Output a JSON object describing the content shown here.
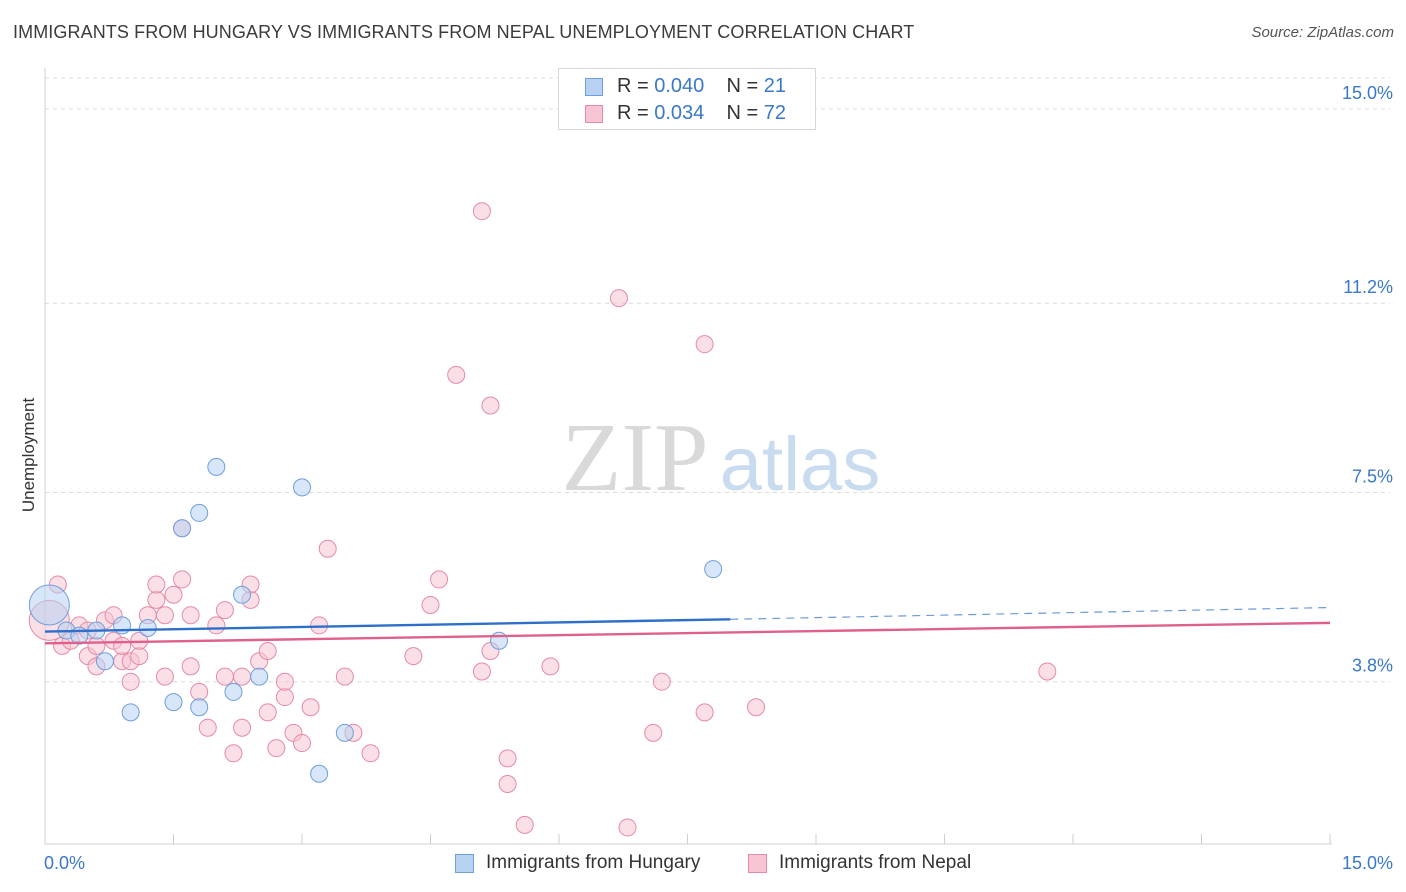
{
  "title": "IMMIGRANTS FROM HUNGARY VS IMMIGRANTS FROM NEPAL UNEMPLOYMENT CORRELATION CHART",
  "source": "Source: ZipAtlas.com",
  "watermark": {
    "zip": "ZIP",
    "atlas": "atlas"
  },
  "legend_top": {
    "hungary": {
      "r_label": "R =",
      "r_value": "0.040",
      "n_label": "N =",
      "n_value": "21"
    },
    "nepal": {
      "r_label": "R =",
      "r_value": "0.034",
      "n_label": "N =",
      "n_value": "72"
    }
  },
  "chart_data": {
    "type": "scatter",
    "title": "IMMIGRANTS FROM HUNGARY VS IMMIGRANTS FROM NEPAL UNEMPLOYMENT CORRELATION CHART",
    "xlabel": "",
    "ylabel": "Unemployment",
    "xlim": [
      0,
      15
    ],
    "ylim": [
      0.9,
      15.8
    ],
    "x_tick_labels": [
      "0.0%",
      "15.0%"
    ],
    "y_ticks": [
      3.8,
      7.5,
      11.2,
      15.0
    ],
    "y_tick_labels": [
      "3.8%",
      "7.5%",
      "11.2%",
      "15.0%"
    ],
    "grid": true,
    "colors": {
      "hungary_fill": "#b7d1f3",
      "hungary_stroke": "#6f9fdc",
      "hungary_line": "#2e6fca",
      "nepal_fill": "#f7c5d4",
      "nepal_stroke": "#e58aa8",
      "nepal_line": "#e0608c",
      "tick_label": "#3a78c9"
    },
    "series": [
      {
        "name": "Immigrants from Hungary",
        "trend": {
          "x0": 0,
          "y0": 4.78,
          "x1": 8.0,
          "y1": 5.02,
          "dash_to_x": 15,
          "dash_to_y": 5.25
        },
        "points": [
          {
            "x": 0.05,
            "y": 5.3,
            "s": "L"
          },
          {
            "x": 0.25,
            "y": 4.8
          },
          {
            "x": 0.6,
            "y": 4.8
          },
          {
            "x": 0.9,
            "y": 4.9
          },
          {
            "x": 1.2,
            "y": 4.85
          },
          {
            "x": 0.7,
            "y": 4.2
          },
          {
            "x": 1.0,
            "y": 3.2
          },
          {
            "x": 1.6,
            "y": 6.8
          },
          {
            "x": 1.8,
            "y": 7.1
          },
          {
            "x": 2.0,
            "y": 8.0
          },
          {
            "x": 1.5,
            "y": 3.4
          },
          {
            "x": 1.8,
            "y": 3.3
          },
          {
            "x": 2.2,
            "y": 3.6
          },
          {
            "x": 2.3,
            "y": 5.5
          },
          {
            "x": 2.5,
            "y": 3.9
          },
          {
            "x": 3.0,
            "y": 7.6
          },
          {
            "x": 3.5,
            "y": 2.8
          },
          {
            "x": 3.2,
            "y": 2.0
          },
          {
            "x": 5.3,
            "y": 4.6
          },
          {
            "x": 7.8,
            "y": 6.0
          },
          {
            "x": 0.4,
            "y": 4.7
          }
        ]
      },
      {
        "name": "Immigrants from Nepal",
        "trend": {
          "x0": 0,
          "y0": 4.55,
          "x1": 15,
          "y1": 4.95
        },
        "points": [
          {
            "x": 0.05,
            "y": 5.0,
            "s": "L"
          },
          {
            "x": 0.15,
            "y": 5.7
          },
          {
            "x": 0.2,
            "y": 4.5
          },
          {
            "x": 0.3,
            "y": 4.6
          },
          {
            "x": 0.4,
            "y": 4.9
          },
          {
            "x": 0.5,
            "y": 4.3
          },
          {
            "x": 0.6,
            "y": 4.1
          },
          {
            "x": 0.6,
            "y": 4.5
          },
          {
            "x": 0.7,
            "y": 5.0
          },
          {
            "x": 0.8,
            "y": 4.6
          },
          {
            "x": 0.8,
            "y": 5.1
          },
          {
            "x": 0.9,
            "y": 4.2
          },
          {
            "x": 0.9,
            "y": 4.5
          },
          {
            "x": 1.0,
            "y": 3.8
          },
          {
            "x": 1.0,
            "y": 4.2
          },
          {
            "x": 1.1,
            "y": 4.3
          },
          {
            "x": 1.1,
            "y": 4.6
          },
          {
            "x": 1.2,
            "y": 5.1
          },
          {
            "x": 1.3,
            "y": 5.4
          },
          {
            "x": 1.3,
            "y": 5.7
          },
          {
            "x": 1.4,
            "y": 3.9
          },
          {
            "x": 1.4,
            "y": 5.1
          },
          {
            "x": 1.5,
            "y": 5.5
          },
          {
            "x": 1.6,
            "y": 6.8
          },
          {
            "x": 1.6,
            "y": 5.8
          },
          {
            "x": 1.7,
            "y": 5.1
          },
          {
            "x": 1.7,
            "y": 4.1
          },
          {
            "x": 1.8,
            "y": 3.6
          },
          {
            "x": 1.9,
            "y": 2.9
          },
          {
            "x": 2.0,
            "y": 4.9
          },
          {
            "x": 2.1,
            "y": 5.2
          },
          {
            "x": 2.1,
            "y": 3.9
          },
          {
            "x": 2.2,
            "y": 2.4
          },
          {
            "x": 2.3,
            "y": 3.9
          },
          {
            "x": 2.3,
            "y": 2.9
          },
          {
            "x": 2.4,
            "y": 5.4
          },
          {
            "x": 2.4,
            "y": 5.7
          },
          {
            "x": 2.5,
            "y": 4.2
          },
          {
            "x": 2.6,
            "y": 4.4
          },
          {
            "x": 2.6,
            "y": 3.2
          },
          {
            "x": 2.7,
            "y": 2.5
          },
          {
            "x": 2.8,
            "y": 3.5
          },
          {
            "x": 2.8,
            "y": 3.8
          },
          {
            "x": 2.9,
            "y": 2.8
          },
          {
            "x": 3.0,
            "y": 2.6
          },
          {
            "x": 3.1,
            "y": 3.3
          },
          {
            "x": 3.2,
            "y": 4.9
          },
          {
            "x": 3.3,
            "y": 6.4
          },
          {
            "x": 3.5,
            "y": 3.9
          },
          {
            "x": 3.6,
            "y": 2.8
          },
          {
            "x": 3.8,
            "y": 2.4
          },
          {
            "x": 4.3,
            "y": 4.3
          },
          {
            "x": 4.5,
            "y": 5.3
          },
          {
            "x": 4.6,
            "y": 5.8
          },
          {
            "x": 4.8,
            "y": 9.8
          },
          {
            "x": 5.1,
            "y": 4.0
          },
          {
            "x": 5.2,
            "y": 4.4
          },
          {
            "x": 5.2,
            "y": 9.2
          },
          {
            "x": 5.1,
            "y": 13.0
          },
          {
            "x": 5.4,
            "y": 2.3
          },
          {
            "x": 5.4,
            "y": 1.8
          },
          {
            "x": 5.6,
            "y": 1.0
          },
          {
            "x": 5.9,
            "y": 4.1
          },
          {
            "x": 6.7,
            "y": 11.3
          },
          {
            "x": 6.8,
            "y": 0.95
          },
          {
            "x": 7.1,
            "y": 2.8
          },
          {
            "x": 7.2,
            "y": 3.8
          },
          {
            "x": 7.7,
            "y": 3.2
          },
          {
            "x": 7.7,
            "y": 10.4
          },
          {
            "x": 8.3,
            "y": 3.3
          },
          {
            "x": 11.7,
            "y": 4.0
          },
          {
            "x": 0.5,
            "y": 4.8
          }
        ]
      }
    ]
  }
}
